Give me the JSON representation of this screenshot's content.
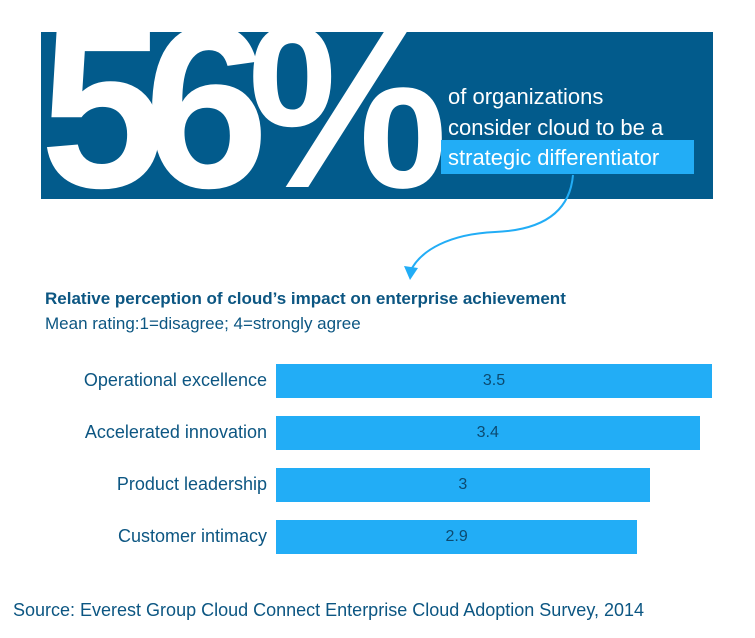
{
  "banner": {
    "stat": "56%",
    "line1": "of organizations",
    "line2": "consider cloud to be a",
    "highlight": "strategic differentiator"
  },
  "colors": {
    "banner": "#025b8c",
    "bar": "#22adf6",
    "text": "#0c5682"
  },
  "chart_data": {
    "type": "bar",
    "orientation": "horizontal",
    "title": "Relative perception of cloud’s impact on enterprise achievement",
    "subtitle": "Mean rating:1=disagree; 4=strongly agree",
    "categories": [
      "Operational excellence",
      "Accelerated innovation",
      "Product leadership",
      "Customer intimacy"
    ],
    "values": [
      3.5,
      3.4,
      3,
      2.9
    ],
    "value_labels": [
      "3.5",
      "3.4",
      "3",
      "2.9"
    ],
    "xlim": [
      0,
      3.5
    ],
    "grid": false
  },
  "source": "Source: Everest Group Cloud Connect Enterprise Cloud Adoption Survey, 2014"
}
